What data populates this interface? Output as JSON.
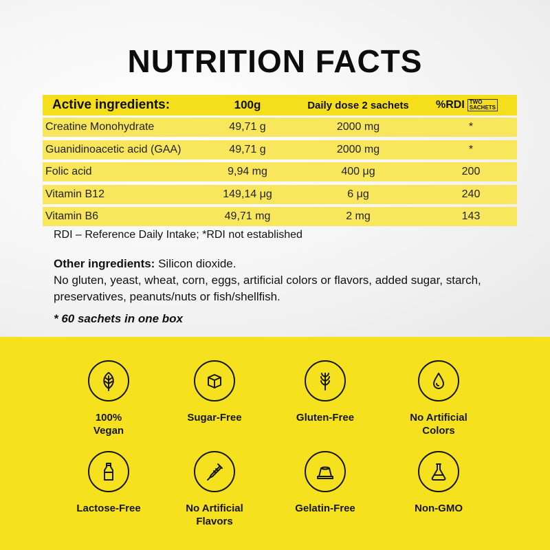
{
  "title": "NUTRITION FACTS",
  "table": {
    "headers": [
      "Active ingredients:",
      "100g",
      "Daily dose  2 sachets",
      "%RDI"
    ],
    "rdi_box": [
      "TWO",
      "SACHETS"
    ],
    "rows": [
      [
        "Creatine Monohydrate",
        "49,71 g",
        "2000 mg",
        "*"
      ],
      [
        "Guanidinoacetic acid (GAA)",
        "49,71 g",
        "2000 mg",
        "*"
      ],
      [
        "Folic acid",
        "9,94 mg",
        "400 μg",
        "200"
      ],
      [
        "Vitamin B12",
        "149,14 μg",
        "6 μg",
        "240"
      ],
      [
        "Vitamin B6",
        "49,71 mg",
        "2 mg",
        "143"
      ]
    ]
  },
  "rdi_note": "RDI – Reference Daily Intake; *RDI not established",
  "other": {
    "label": "Other ingredients:",
    "value": " Silicon dioxide.",
    "free_from": "No gluten, yeast, wheat, corn, eggs, artificial colors or flavors, added sugar, starch, preservatives, peanuts/nuts or fish/shellfish."
  },
  "box_note": "* 60 sachets in one box",
  "badges": [
    {
      "icon": "leaf-icon",
      "line1": "100%",
      "line2": "Vegan"
    },
    {
      "icon": "sugar-cube-icon",
      "line1": "Sugar-Free",
      "line2": ""
    },
    {
      "icon": "wheat-icon",
      "line1": "Gluten-Free",
      "line2": ""
    },
    {
      "icon": "drop-icon",
      "line1": "No Artificial",
      "line2": "Colors"
    },
    {
      "icon": "milk-bottle-icon",
      "line1": "Lactose-Free",
      "line2": ""
    },
    {
      "icon": "syringe-icon",
      "line1": "No Artificial",
      "line2": "Flavors"
    },
    {
      "icon": "gelatin-icon",
      "line1": "Gelatin-Free",
      "line2": ""
    },
    {
      "icon": "flask-icon",
      "line1": "Non-GMO",
      "line2": ""
    }
  ]
}
